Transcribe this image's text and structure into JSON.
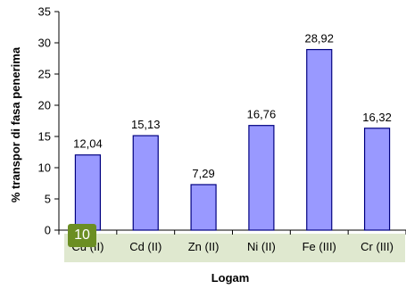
{
  "chart_data": {
    "type": "bar",
    "categories": [
      "Cu (II)",
      "Cd (II)",
      "Zn (II)",
      "Ni (II)",
      "Fe (III)",
      "Cr (III)"
    ],
    "values": [
      12.04,
      15.13,
      7.29,
      16.76,
      28.92,
      16.32
    ],
    "value_labels": [
      "12,04",
      "15,13",
      "7,29",
      "16,76",
      "28,92",
      "16,32"
    ],
    "title": "",
    "xlabel": "Logam",
    "ylabel": "% transpor di fasa penerima",
    "ylim": [
      0,
      35
    ],
    "yticks": [
      0,
      5,
      10,
      15,
      20,
      25,
      30,
      35
    ],
    "grid": false,
    "bar_color": "#9999ff",
    "bar_edge_color": "#000080",
    "tick_band_color": "#dfe8cf"
  },
  "badge": {
    "label": "10",
    "color": "#6b8e23"
  }
}
